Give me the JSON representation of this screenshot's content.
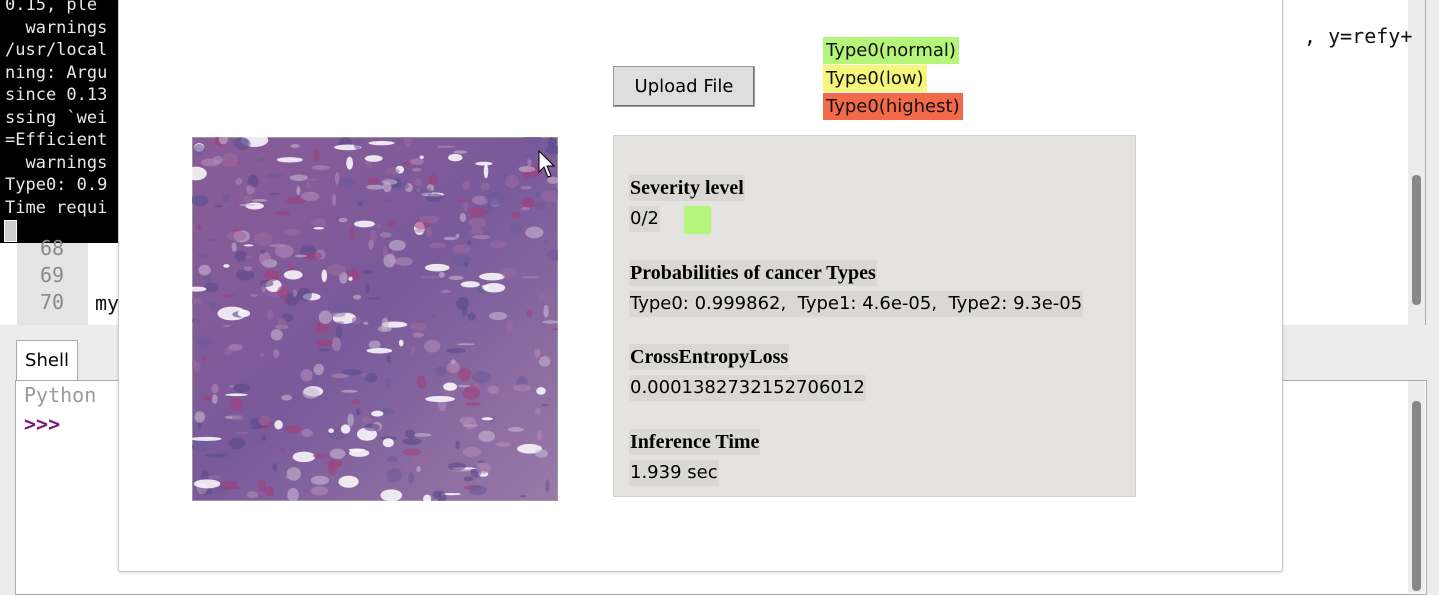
{
  "terminal": {
    "lines": [
      "0.15, ple",
      "  warnings",
      "/usr/local",
      "ning: Argu",
      "since 0.13",
      "ssing `wei",
      "=Efficient",
      "  warnings",
      "Type0: 0.9",
      "Time requi"
    ]
  },
  "editor": {
    "line_numbers": [
      "68",
      "69",
      "70"
    ],
    "code_fragment": "my",
    "code_right": ", y=refy+"
  },
  "shell": {
    "tab": "Shell",
    "banner": "Python",
    "prompt": ">>>"
  },
  "dialog": {
    "upload_button": "Upload File",
    "legend": [
      {
        "label": "Type0(normal)",
        "color": "#b5f57a"
      },
      {
        "label": "Type0(low)",
        "color": "#f6f77a"
      },
      {
        "label": "Type0(highest)",
        "color": "#f26a4a"
      }
    ],
    "severity_color": "#b5f57a",
    "results": [
      {
        "heading": "Severity level",
        "value": "0/2"
      },
      {
        "heading": "Probabilities of cancer Types",
        "value": "Type0: 0.999862,  Type1: 4.6e-05,  Type2: 9.3e-05"
      },
      {
        "heading": "CrossEntropyLoss",
        "value": "0.0001382732152706012"
      },
      {
        "heading": "Inference Time",
        "value": "1.939 sec"
      }
    ]
  }
}
